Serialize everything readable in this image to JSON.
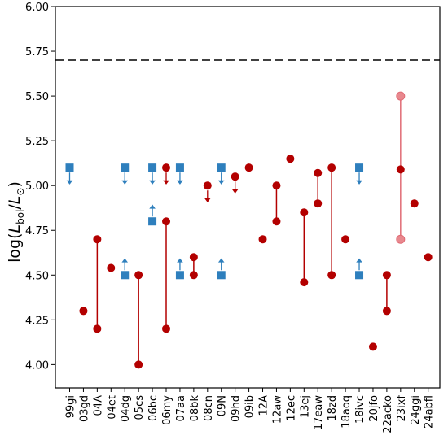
{
  "chart_data": {
    "type": "scatter",
    "ylabel": "log(L_bol/L_⊙)",
    "ylim": [
      3.87,
      6.0
    ],
    "yticks": [
      4.0,
      4.25,
      4.5,
      4.75,
      5.0,
      5.25,
      5.5,
      5.75,
      6.0
    ],
    "ytick_labels": [
      "4.00",
      "4.25",
      "4.50",
      "4.75",
      "5.00",
      "5.25",
      "5.50",
      "5.75",
      "6.00"
    ],
    "categories": [
      "99gi",
      "03gd",
      "04A",
      "04et",
      "04dg",
      "05cs",
      "06bc",
      "06my",
      "07aa",
      "08bk",
      "08cn",
      "09N",
      "09hd",
      "09ib",
      "12A",
      "12aw",
      "12ec",
      "13ej",
      "17eaw",
      "18zd",
      "18aoq",
      "18ivc",
      "20jfo",
      "22acko",
      "23ixf",
      "24ggi",
      "24abfl"
    ],
    "reference_line": {
      "y": 5.7,
      "style": "dashed"
    },
    "colors": {
      "red": "#b30000",
      "blue": "#2e7fbd",
      "faded_red": "#e8888e",
      "faded_red_line": "#e06b75"
    },
    "series": [
      {
        "marker": "square",
        "color": "blue",
        "points": [
          {
            "x": "99gi",
            "y": 5.1,
            "limit": "upper"
          },
          {
            "x": "04dg",
            "y": 5.1,
            "limit": "upper"
          },
          {
            "x": "04dg",
            "y": 4.5,
            "limit": "lower"
          },
          {
            "x": "06bc",
            "y": 5.1,
            "limit": "upper"
          },
          {
            "x": "06bc",
            "y": 4.8,
            "limit": "lower"
          },
          {
            "x": "07aa",
            "y": 5.1,
            "limit": "upper"
          },
          {
            "x": "07aa",
            "y": 4.5,
            "limit": "lower"
          },
          {
            "x": "09N",
            "y": 5.1,
            "limit": "upper"
          },
          {
            "x": "09N",
            "y": 4.5,
            "limit": "lower"
          },
          {
            "x": "18ivc",
            "y": 5.1,
            "limit": "upper"
          },
          {
            "x": "18ivc",
            "y": 4.5,
            "limit": "lower"
          }
        ]
      },
      {
        "marker": "circle",
        "color": "red",
        "points": [
          {
            "x": "03gd",
            "y": 4.3
          },
          {
            "x": "04A",
            "y": 4.7
          },
          {
            "x": "04A",
            "y": 4.2
          },
          {
            "x": "04et",
            "y": 4.54
          },
          {
            "x": "05cs",
            "y": 4.5
          },
          {
            "x": "05cs",
            "y": 4.0
          },
          {
            "x": "06my",
            "y": 5.1,
            "limit": "upper"
          },
          {
            "x": "06my",
            "y": 4.8
          },
          {
            "x": "06my",
            "y": 4.2
          },
          {
            "x": "08bk",
            "y": 4.6
          },
          {
            "x": "08bk",
            "y": 4.5
          },
          {
            "x": "08cn",
            "y": 5.0,
            "limit": "upper"
          },
          {
            "x": "09hd",
            "y": 5.05,
            "limit": "upper"
          },
          {
            "x": "09ib",
            "y": 5.1
          },
          {
            "x": "12A",
            "y": 4.7
          },
          {
            "x": "12aw",
            "y": 5.0
          },
          {
            "x": "12aw",
            "y": 4.8
          },
          {
            "x": "12ec",
            "y": 5.15
          },
          {
            "x": "13ej",
            "y": 4.85
          },
          {
            "x": "13ej",
            "y": 4.46
          },
          {
            "x": "17eaw",
            "y": 5.07
          },
          {
            "x": "17eaw",
            "y": 4.9
          },
          {
            "x": "18zd",
            "y": 5.1
          },
          {
            "x": "18zd",
            "y": 4.5
          },
          {
            "x": "18aoq",
            "y": 4.7
          },
          {
            "x": "20jfo",
            "y": 4.1
          },
          {
            "x": "22acko",
            "y": 4.5
          },
          {
            "x": "22acko",
            "y": 4.3
          },
          {
            "x": "23ixf",
            "y": 5.09
          },
          {
            "x": "24ggi",
            "y": 4.9
          },
          {
            "x": "24abfl",
            "y": 4.6
          }
        ]
      },
      {
        "marker": "circle",
        "color": "faded_red",
        "points": [
          {
            "x": "23ixf",
            "y": 5.5
          },
          {
            "x": "23ixf",
            "y": 4.7
          }
        ]
      }
    ],
    "ranges": [
      {
        "x": "04A",
        "y": [
          4.2,
          4.7
        ],
        "color": "red"
      },
      {
        "x": "05cs",
        "y": [
          4.0,
          4.5
        ],
        "color": "red"
      },
      {
        "x": "06my",
        "y": [
          4.2,
          4.8
        ],
        "color": "red"
      },
      {
        "x": "08bk",
        "y": [
          4.5,
          4.6
        ],
        "color": "red"
      },
      {
        "x": "12aw",
        "y": [
          4.8,
          5.0
        ],
        "color": "red"
      },
      {
        "x": "13ej",
        "y": [
          4.46,
          4.85
        ],
        "color": "red"
      },
      {
        "x": "17eaw",
        "y": [
          4.9,
          5.07
        ],
        "color": "red"
      },
      {
        "x": "18zd",
        "y": [
          4.5,
          5.1
        ],
        "color": "red"
      },
      {
        "x": "22acko",
        "y": [
          4.3,
          4.5
        ],
        "color": "red"
      },
      {
        "x": "23ixf",
        "y": [
          4.7,
          5.5
        ],
        "color": "faded_red_line"
      }
    ]
  }
}
